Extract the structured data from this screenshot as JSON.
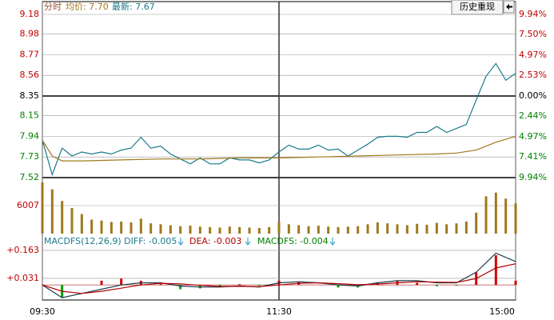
{
  "header": {
    "mode": "分时",
    "avg": "均价: 7.70",
    "latest": "最新: 7.67",
    "history": "历史重现"
  },
  "chart_data": [
    {
      "type": "line",
      "xlim": [
        0,
        240
      ],
      "xticks": [
        {
          "value": 0,
          "label": "09:30"
        },
        {
          "value": 120,
          "label": "11:30"
        },
        {
          "value": 240,
          "label": "15:00"
        }
      ],
      "ylim": [
        7.52,
        9.18
      ],
      "yticks": [
        9.18,
        8.98,
        8.77,
        8.56,
        8.35,
        8.15,
        7.94,
        7.73,
        7.52
      ],
      "y2lim": [
        -9.94,
        9.94
      ],
      "y2ticks": [
        {
          "value": 9.94,
          "label": "9.94%"
        },
        {
          "value": 7.5,
          "label": "7.50%"
        },
        {
          "value": 4.97,
          "label": "4.97%"
        },
        {
          "value": 2.53,
          "label": "2.53%"
        },
        {
          "value": 0,
          "label": "0.00%"
        },
        {
          "value": -2.44,
          "label": "2.44%"
        },
        {
          "value": -4.97,
          "label": "4.97%"
        },
        {
          "value": -7.41,
          "label": "7.41%"
        },
        {
          "value": -9.94,
          "label": "9.94%"
        }
      ],
      "up_color": "#c00000",
      "down_color": "#008000",
      "grid": true,
      "series": [
        {
          "color": "#1a7a8c",
          "x": [
            0,
            5,
            10,
            15,
            20,
            25,
            30,
            35,
            40,
            45,
            50,
            55,
            60,
            65,
            70,
            75,
            80,
            85,
            90,
            95,
            100,
            105,
            110,
            115,
            120,
            125,
            130,
            135,
            140,
            145,
            150,
            155,
            160,
            165,
            170,
            175,
            180,
            185,
            190,
            195,
            200,
            205,
            210,
            215,
            220,
            225,
            230,
            235,
            240
          ],
          "values": [
            7.9,
            7.55,
            7.82,
            7.74,
            7.78,
            7.76,
            7.78,
            7.76,
            7.8,
            7.82,
            7.93,
            7.82,
            7.84,
            7.76,
            7.71,
            7.66,
            7.72,
            7.66,
            7.66,
            7.72,
            7.7,
            7.7,
            7.67,
            7.7,
            7.78,
            7.85,
            7.81,
            7.81,
            7.85,
            7.8,
            7.81,
            7.74,
            7.8,
            7.86,
            7.93,
            7.94,
            7.94,
            7.93,
            7.98,
            7.98,
            8.04,
            7.98,
            8.02,
            8.06,
            8.31,
            8.55,
            8.68,
            8.51,
            8.58
          ]
        },
        {
          "color": "#a0781e",
          "x": [
            0,
            5,
            10,
            20,
            40,
            60,
            80,
            100,
            120,
            140,
            160,
            180,
            200,
            210,
            220,
            230,
            240
          ],
          "values": [
            7.9,
            7.74,
            7.69,
            7.69,
            7.7,
            7.71,
            7.71,
            7.72,
            7.72,
            7.73,
            7.74,
            7.75,
            7.76,
            7.77,
            7.8,
            7.88,
            7.94
          ]
        }
      ]
    },
    {
      "type": "bar",
      "xlim": [
        0,
        240
      ],
      "ylim": [
        0,
        12014
      ],
      "yticks": [
        6007
      ],
      "color": "#a0781e",
      "x": [
        0,
        5,
        10,
        15,
        20,
        25,
        30,
        35,
        40,
        45,
        50,
        55,
        60,
        65,
        70,
        75,
        80,
        85,
        90,
        95,
        100,
        105,
        110,
        115,
        120,
        125,
        130,
        135,
        140,
        145,
        150,
        155,
        160,
        165,
        170,
        175,
        180,
        185,
        190,
        195,
        200,
        205,
        210,
        215,
        220,
        225,
        230,
        235,
        240
      ],
      "values": [
        11000,
        9500,
        7000,
        5500,
        4200,
        3000,
        2800,
        2500,
        2600,
        2400,
        3200,
        2200,
        2000,
        1800,
        1600,
        1700,
        1500,
        1400,
        1300,
        1500,
        1400,
        1300,
        1200,
        1400,
        2500,
        2000,
        1800,
        1600,
        1700,
        1500,
        1400,
        1500,
        1600,
        2000,
        2400,
        2200,
        2000,
        1800,
        2100,
        1900,
        2300,
        2000,
        2200,
        2600,
        4500,
        8000,
        8800,
        7500,
        6500
      ]
    },
    {
      "type": "macd",
      "xlim": [
        0,
        240
      ],
      "ylim": [
        -0.071,
        0.242
      ],
      "yticks": [
        {
          "value": 0.163,
          "label": "+0.163"
        },
        {
          "value": 0.031,
          "label": "+0.031"
        }
      ],
      "legend": [
        "MACDFS(12,26,9) DIFF: -0.005",
        "DEA: -0.003",
        "MACDFS: -0.004"
      ],
      "x": [
        0,
        10,
        20,
        30,
        40,
        50,
        60,
        70,
        80,
        90,
        100,
        110,
        120,
        130,
        140,
        150,
        160,
        170,
        180,
        190,
        200,
        210,
        220,
        230,
        240
      ],
      "histogram": {
        "color": "#d00000",
        "negative_color": "#00a000",
        "values": [
          0,
          -0.06,
          0,
          0.02,
          0.03,
          0.02,
          0.004,
          -0.02,
          -0.016,
          -0.006,
          0.004,
          -0.004,
          0.02,
          0.014,
          0,
          -0.012,
          -0.012,
          0.012,
          0.02,
          0.01,
          -0.006,
          -0.004,
          0.06,
          0.14,
          0.02
        ]
      },
      "series": [
        {
          "color": "#1a3a4c",
          "values": [
            0,
            -0.06,
            -0.04,
            -0.02,
            0,
            0.01,
            0.01,
            -0.005,
            -0.01,
            -0.01,
            -0.005,
            -0.01,
            0.01,
            0.015,
            0.01,
            0,
            -0.005,
            0.01,
            0.02,
            0.02,
            0.01,
            0.01,
            0.06,
            0.15,
            0.11
          ]
        },
        {
          "color": "#b00000",
          "values": [
            0,
            -0.03,
            -0.04,
            -0.03,
            -0.015,
            0,
            0.008,
            0.005,
            -0.002,
            -0.007,
            -0.007,
            -0.008,
            0,
            0.008,
            0.01,
            0.006,
            0.001,
            0.004,
            0.01,
            0.015,
            0.013,
            0.012,
            0.03,
            0.08,
            0.1
          ]
        }
      ]
    }
  ]
}
